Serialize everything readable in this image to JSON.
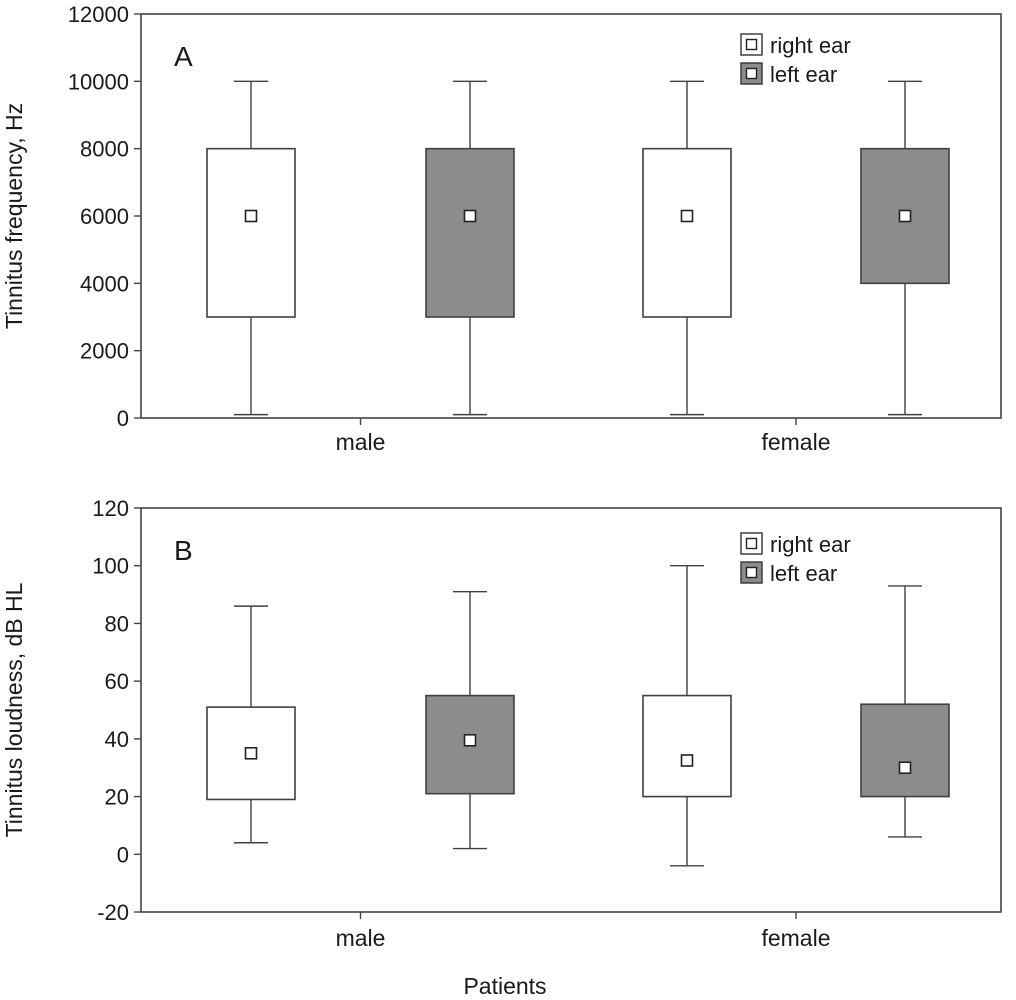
{
  "xlabel": "Patients",
  "legend": {
    "right": "right ear",
    "left": "left ear"
  },
  "colors": {
    "right": "#ffffff",
    "left": "#8c8c8c",
    "stroke": "#404040"
  },
  "chart_data": [
    {
      "type": "box",
      "panel_label": "A",
      "ylabel": "Tinnitus frequency, Hz",
      "ylim": [
        0,
        12000
      ],
      "yticks": [
        0,
        2000,
        4000,
        6000,
        8000,
        10000,
        12000
      ],
      "categories": [
        "male",
        "female"
      ],
      "legend_position": "top-right",
      "grid": false,
      "series": [
        {
          "name": "right ear",
          "boxes": [
            {
              "min": 100,
              "q1": 3000,
              "median": 6000,
              "q3": 8000,
              "max": 10000
            },
            {
              "min": 100,
              "q1": 3000,
              "median": 6000,
              "q3": 8000,
              "max": 10000
            }
          ]
        },
        {
          "name": "left ear",
          "boxes": [
            {
              "min": 100,
              "q1": 3000,
              "median": 6000,
              "q3": 8000,
              "max": 10000
            },
            {
              "min": 100,
              "q1": 4000,
              "median": 6000,
              "q3": 8000,
              "max": 10000
            }
          ]
        }
      ]
    },
    {
      "type": "box",
      "panel_label": "B",
      "ylabel": "Tinnitus loudness, dB HL",
      "ylim": [
        -20,
        120
      ],
      "yticks": [
        -20,
        0,
        20,
        40,
        60,
        80,
        100,
        120
      ],
      "categories": [
        "male",
        "female"
      ],
      "legend_position": "top-right",
      "grid": false,
      "series": [
        {
          "name": "right ear",
          "boxes": [
            {
              "min": 4,
              "q1": 19,
              "median": 35,
              "q3": 51,
              "max": 86
            },
            {
              "min": -4,
              "q1": 20,
              "median": 32.5,
              "q3": 55,
              "max": 100
            }
          ]
        },
        {
          "name": "left ear",
          "boxes": [
            {
              "min": 2,
              "q1": 21,
              "median": 39.5,
              "q3": 55,
              "max": 91
            },
            {
              "min": 6,
              "q1": 20,
              "median": 30,
              "q3": 52,
              "max": 93
            }
          ]
        }
      ]
    }
  ]
}
